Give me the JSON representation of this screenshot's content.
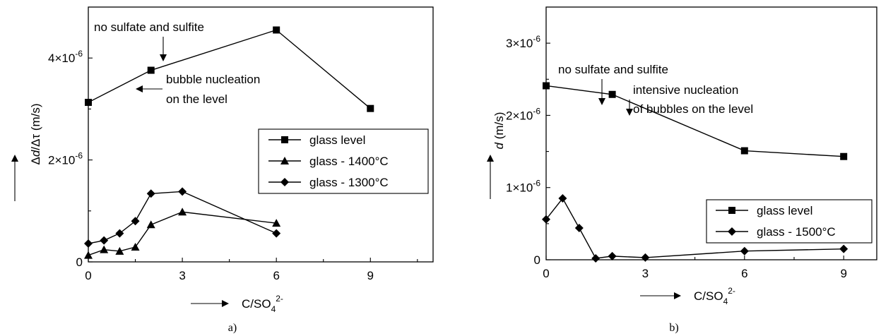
{
  "chart_data": [
    {
      "type": "line",
      "panel_label": "a)",
      "xlabel": "C/SO",
      "xlabel_sub": "4",
      "xlabel_sup": "2-",
      "ylabel": "Δd/Δτ (m/s)",
      "xlim": [
        0,
        11
      ],
      "ylim": [
        0,
        5e-06
      ],
      "xticks": [
        {
          "v": 0,
          "label": "0"
        },
        {
          "v": 3,
          "label": "3"
        },
        {
          "v": 6,
          "label": "6"
        },
        {
          "v": 9,
          "label": "9"
        }
      ],
      "xminor": [
        1.5,
        4.5,
        7.5,
        10.5
      ],
      "yticks": [
        {
          "v": 0,
          "label": "0"
        },
        {
          "v": 2e-06,
          "label": "2×10",
          "exp": "-6"
        },
        {
          "v": 4e-06,
          "label": "4×10",
          "exp": "-6"
        }
      ],
      "yminor": [
        1e-06,
        3e-06
      ],
      "series": [
        {
          "name": "glass level",
          "marker": "square",
          "x": [
            0,
            2,
            6,
            9
          ],
          "y": [
            3.13e-06,
            3.76e-06,
            4.55e-06,
            3.01e-06
          ]
        },
        {
          "name": "glass - 1400°C",
          "marker": "triangle",
          "x": [
            0,
            0.5,
            1,
            1.5,
            2,
            3,
            6
          ],
          "y": [
            1.3e-07,
            2.4e-07,
            2.1e-07,
            2.9e-07,
            7.3e-07,
            9.8e-07,
            7.6e-07
          ]
        },
        {
          "name": "glass - 1300°C",
          "marker": "diamond",
          "x": [
            0,
            0.5,
            1,
            1.5,
            2,
            3,
            6
          ],
          "y": [
            3.6e-07,
            4.2e-07,
            5.6e-07,
            8e-07,
            1.34e-06,
            1.38e-06,
            5.6e-07
          ]
        }
      ],
      "annotations": [
        {
          "text": "no sulfate and sulfite"
        },
        {
          "text": "bubble nucleation"
        },
        {
          "text": "on the level"
        }
      ]
    },
    {
      "type": "line",
      "panel_label": "b)",
      "xlabel": "C/SO",
      "xlabel_sub": "4",
      "xlabel_sup": "2-",
      "ylabel": "d (m/s)",
      "xlim": [
        0,
        10
      ],
      "ylim": [
        0,
        3.5e-06
      ],
      "xticks": [
        {
          "v": 0,
          "label": "0"
        },
        {
          "v": 3,
          "label": "3"
        },
        {
          "v": 6,
          "label": "6"
        },
        {
          "v": 9,
          "label": "9"
        }
      ],
      "xminor": [
        1.5,
        4.5,
        7.5
      ],
      "yticks": [
        {
          "v": 0,
          "label": "0"
        },
        {
          "v": 1e-06,
          "label": "1×10",
          "exp": "-6"
        },
        {
          "v": 2e-06,
          "label": "2×10",
          "exp": "-6"
        },
        {
          "v": 3e-06,
          "label": "3×10",
          "exp": "-6"
        }
      ],
      "yminor": [
        5e-07,
        1.5e-06,
        2.5e-06
      ],
      "series": [
        {
          "name": "glass level",
          "marker": "square",
          "x": [
            0,
            2,
            6,
            9
          ],
          "y": [
            2.41e-06,
            2.29e-06,
            1.51e-06,
            1.43e-06
          ]
        },
        {
          "name": "glass - 1500°C",
          "marker": "diamond",
          "x": [
            0,
            0.5,
            1,
            1.5,
            2,
            3,
            6,
            9
          ],
          "y": [
            5.6e-07,
            8.5e-07,
            4.4e-07,
            2e-08,
            5e-08,
            3e-08,
            1.2e-07,
            1.5e-07
          ]
        }
      ],
      "annotations": [
        {
          "text": "no sulfate and sulfite"
        },
        {
          "text": "intensive nucleation"
        },
        {
          "text": "of bubbles on the level"
        }
      ]
    }
  ]
}
